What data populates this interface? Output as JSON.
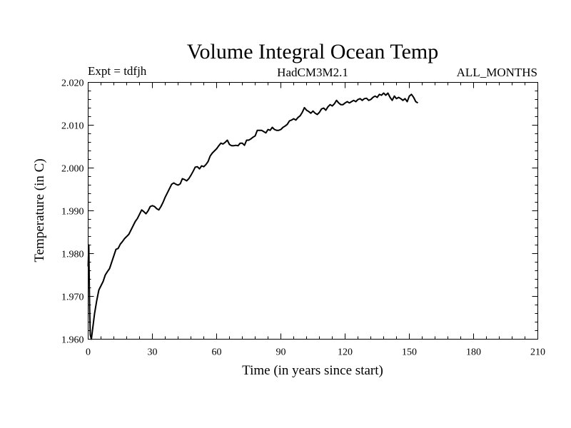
{
  "chart_data": {
    "type": "line",
    "title": "Volume Integral Ocean Temp",
    "subtitle_left": "Expt = tdfjh",
    "subtitle_center": "HadCM3M2.1",
    "subtitle_right": "ALL_MONTHS",
    "xlabel": "Time (in years since start)",
    "ylabel": "Temperature (in C)",
    "xlim": [
      0,
      210
    ],
    "ylim": [
      1.96,
      2.02
    ],
    "x_major_ticks": [
      0,
      30,
      60,
      90,
      120,
      150,
      180,
      210
    ],
    "x_tick_labels": [
      "0",
      "30",
      "60",
      "90",
      "120",
      "150",
      "180",
      "210"
    ],
    "x_minor_step": 6,
    "y_major_ticks": [
      1.96,
      1.97,
      1.98,
      1.99,
      2.0,
      2.01,
      2.02
    ],
    "y_tick_labels": [
      "1.960",
      "1.970",
      "1.980",
      "1.990",
      "2.000",
      "2.010",
      "2.020"
    ],
    "y_minor_step": 0.002,
    "grid": false,
    "series": [
      {
        "name": "Volume Integral Ocean Temp",
        "color": "#000000",
        "points": [
          [
            0,
            1.977
          ],
          [
            0.3,
            1.982
          ],
          [
            0.7,
            1.967
          ],
          [
            1,
            1.961
          ],
          [
            1.5,
            1.96
          ],
          [
            2,
            1.962
          ],
          [
            3,
            1.966
          ],
          [
            4,
            1.969
          ],
          [
            5,
            1.9715
          ],
          [
            6,
            1.9725
          ],
          [
            7,
            1.9735
          ],
          [
            8,
            1.975
          ],
          [
            9,
            1.9758
          ],
          [
            10,
            1.9765
          ],
          [
            11,
            1.978
          ],
          [
            12,
            1.9795
          ],
          [
            13,
            1.981
          ],
          [
            14,
            1.9812
          ],
          [
            15,
            1.9822
          ],
          [
            16,
            1.9828
          ],
          [
            17,
            1.9835
          ],
          [
            18,
            1.984
          ],
          [
            19,
            1.9845
          ],
          [
            20,
            1.9855
          ],
          [
            21,
            1.9865
          ],
          [
            22,
            1.9875
          ],
          [
            23,
            1.9882
          ],
          [
            24,
            1.9892
          ],
          [
            25,
            1.9902
          ],
          [
            26,
            1.9898
          ],
          [
            27,
            1.9893
          ],
          [
            28,
            1.99
          ],
          [
            29,
            1.991
          ],
          [
            30,
            1.9912
          ],
          [
            31,
            1.991
          ],
          [
            32,
            1.9905
          ],
          [
            33,
            1.9902
          ],
          [
            34,
            1.991
          ],
          [
            35,
            1.992
          ],
          [
            36,
            1.9932
          ],
          [
            37,
            1.9942
          ],
          [
            38,
            1.9952
          ],
          [
            39,
            1.9962
          ],
          [
            40,
            1.9965
          ],
          [
            41,
            1.9962
          ],
          [
            42,
            1.996
          ],
          [
            43,
            1.9963
          ],
          [
            44,
            1.9975
          ],
          [
            45,
            1.9973
          ],
          [
            46,
            1.997
          ],
          [
            47,
            1.9975
          ],
          [
            48,
            1.9983
          ],
          [
            49,
            1.9992
          ],
          [
            50,
            2.0002
          ],
          [
            51,
            2.0003
          ],
          [
            52,
            1.9998
          ],
          [
            53,
            2.0005
          ],
          [
            54,
            2.0003
          ],
          [
            55,
            2.0008
          ],
          [
            56,
            2.0015
          ],
          [
            57,
            2.0028
          ],
          [
            58,
            2.0035
          ],
          [
            59,
            2.004
          ],
          [
            60,
            2.0045
          ],
          [
            61,
            2.0052
          ],
          [
            62,
            2.0058
          ],
          [
            63,
            2.0056
          ],
          [
            64,
            2.006
          ],
          [
            65,
            2.0065
          ],
          [
            66,
            2.0055
          ],
          [
            67,
            2.0052
          ],
          [
            68,
            2.0052
          ],
          [
            69,
            2.0053
          ],
          [
            70,
            2.0052
          ],
          [
            71,
            2.0058
          ],
          [
            72,
            2.0058
          ],
          [
            73,
            2.0053
          ],
          [
            74,
            2.0065
          ],
          [
            75,
            2.0065
          ],
          [
            76,
            2.0068
          ],
          [
            77,
            2.0072
          ],
          [
            78,
            2.0075
          ],
          [
            79,
            2.0088
          ],
          [
            80,
            2.0088
          ],
          [
            81,
            2.0088
          ],
          [
            82,
            2.0085
          ],
          [
            83,
            2.0082
          ],
          [
            84,
            2.009
          ],
          [
            85,
            2.0088
          ],
          [
            86,
            2.0095
          ],
          [
            87,
            2.009
          ],
          [
            88,
            2.0088
          ],
          [
            89,
            2.0088
          ],
          [
            90,
            2.009
          ],
          [
            91,
            2.0095
          ],
          [
            92,
            2.0098
          ],
          [
            93,
            2.0102
          ],
          [
            94,
            2.011
          ],
          [
            95,
            2.0112
          ],
          [
            96,
            2.0115
          ],
          [
            97,
            2.0112
          ],
          [
            98,
            2.0118
          ],
          [
            99,
            2.0122
          ],
          [
            100,
            2.013
          ],
          [
            101,
            2.0141
          ],
          [
            102,
            2.0135
          ],
          [
            103,
            2.0132
          ],
          [
            104,
            2.0128
          ],
          [
            105,
            2.0133
          ],
          [
            106,
            2.0128
          ],
          [
            107,
            2.0125
          ],
          [
            108,
            2.013
          ],
          [
            109,
            2.0138
          ],
          [
            110,
            2.014
          ],
          [
            111,
            2.0135
          ],
          [
            112,
            2.0143
          ],
          [
            113,
            2.0148
          ],
          [
            114,
            2.0145
          ],
          [
            115,
            2.015
          ],
          [
            116,
            2.0158
          ],
          [
            117,
            2.0152
          ],
          [
            118,
            2.0148
          ],
          [
            119,
            2.0148
          ],
          [
            120,
            2.0152
          ],
          [
            121,
            2.0155
          ],
          [
            122,
            2.0152
          ],
          [
            123,
            2.0155
          ],
          [
            124,
            2.0158
          ],
          [
            125,
            2.0155
          ],
          [
            126,
            2.016
          ],
          [
            127,
            2.0162
          ],
          [
            128,
            2.0158
          ],
          [
            129,
            2.0162
          ],
          [
            130,
            2.0163
          ],
          [
            131,
            2.0158
          ],
          [
            132,
            2.016
          ],
          [
            133,
            2.0165
          ],
          [
            134,
            2.0168
          ],
          [
            135,
            2.0165
          ],
          [
            136,
            2.0172
          ],
          [
            137,
            2.017
          ],
          [
            138,
            2.0175
          ],
          [
            139,
            2.017
          ],
          [
            140,
            2.0175
          ],
          [
            141,
            2.0165
          ],
          [
            142,
            2.0158
          ],
          [
            143,
            2.0168
          ],
          [
            144,
            2.0162
          ],
          [
            145,
            2.0165
          ],
          [
            146,
            2.0162
          ],
          [
            147,
            2.0158
          ],
          [
            148,
            2.0162
          ],
          [
            149,
            2.0155
          ],
          [
            150,
            2.0168
          ],
          [
            151,
            2.0172
          ],
          [
            152,
            2.0165
          ],
          [
            153,
            2.0155
          ],
          [
            154,
            2.0152
          ]
        ]
      }
    ]
  }
}
